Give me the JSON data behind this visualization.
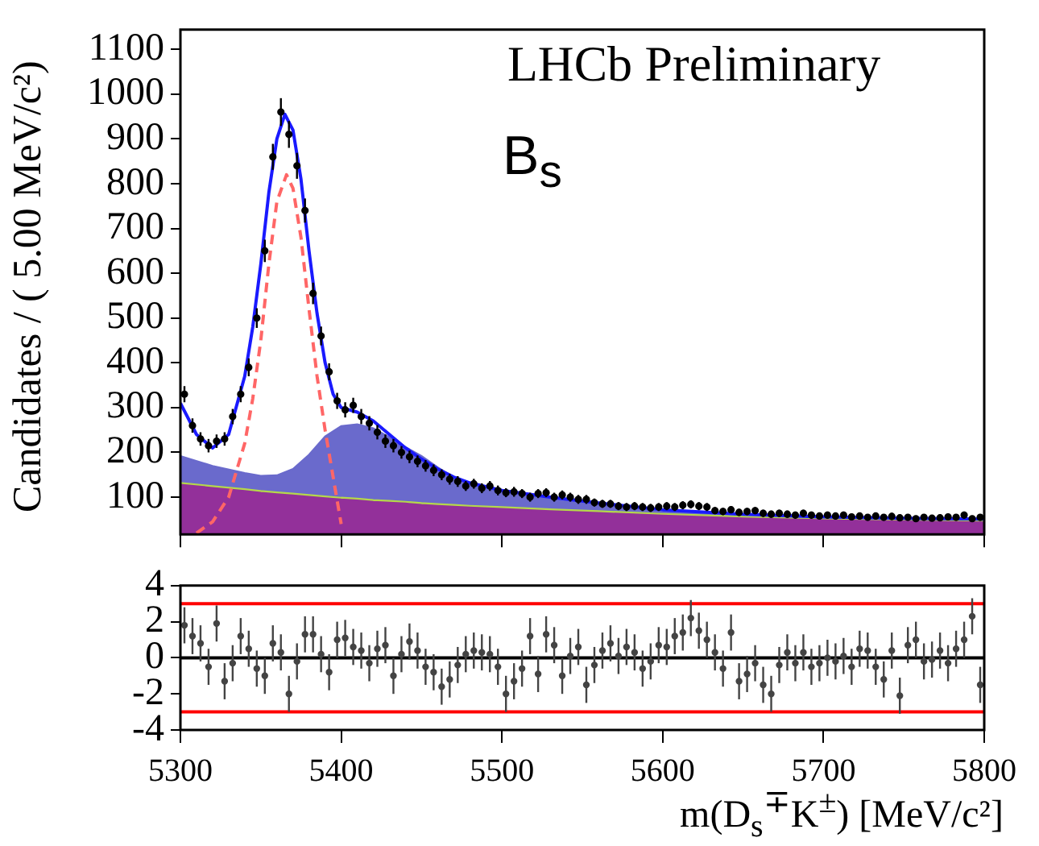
{
  "chart_data": [
    {
      "type": "scatter",
      "ylabel": "Candidates / ( 5.00 MeV/c²)",
      "annotations": [
        "LHCb Preliminary",
        "B$_{s}$"
      ],
      "xlim": [
        5300,
        5800
      ],
      "xticks": [
        5300,
        5400,
        5500,
        5600,
        5700,
        5800
      ],
      "ylim": [
        17,
        1144
      ],
      "yticks": [
        100,
        200,
        300,
        400,
        500,
        600,
        700,
        800,
        900,
        1000,
        1100
      ],
      "tick_labels": "y",
      "x": [
        5302.5,
        5307.5,
        5312.5,
        5317.5,
        5322.5,
        5327.5,
        5332.5,
        5337.5,
        5342.5,
        5347.5,
        5352.5,
        5357.5,
        5362.5,
        5367.5,
        5372.5,
        5377.5,
        5382.5,
        5387.5,
        5392.5,
        5397.5,
        5402.5,
        5407.5,
        5412.5,
        5417.5,
        5422.5,
        5427.5,
        5432.5,
        5437.5,
        5442.5,
        5447.5,
        5452.5,
        5457.5,
        5462.5,
        5467.5,
        5472.5,
        5477.5,
        5482.5,
        5487.5,
        5492.5,
        5497.5,
        5502.5,
        5507.5,
        5512.5,
        5517.5,
        5522.5,
        5527.5,
        5532.5,
        5537.5,
        5542.5,
        5547.5,
        5552.5,
        5557.5,
        5562.5,
        5567.5,
        5572.5,
        5577.5,
        5582.5,
        5587.5,
        5592.5,
        5597.5,
        5602.5,
        5607.5,
        5612.5,
        5617.5,
        5622.5,
        5627.5,
        5632.5,
        5637.5,
        5642.5,
        5647.5,
        5652.5,
        5657.5,
        5662.5,
        5667.5,
        5672.5,
        5677.5,
        5682.5,
        5687.5,
        5692.5,
        5697.5,
        5702.5,
        5707.5,
        5712.5,
        5717.5,
        5722.5,
        5727.5,
        5732.5,
        5737.5,
        5742.5,
        5747.5,
        5752.5,
        5757.5,
        5762.5,
        5767.5,
        5772.5,
        5777.5,
        5782.5,
        5787.5,
        5792.5,
        5797.5
      ],
      "series": [
        {
          "color": "#000000",
          "marker": "circle",
          "values": [
            330,
            260,
            230,
            215,
            225,
            230,
            280,
            330,
            390,
            500,
            650,
            860,
            960,
            910,
            840,
            740,
            555,
            460,
            380,
            315,
            295,
            305,
            280,
            265,
            245,
            225,
            215,
            200,
            190,
            180,
            170,
            160,
            150,
            140,
            135,
            125,
            130,
            120,
            125,
            115,
            110,
            112,
            108,
            100,
            108,
            110,
            100,
            105,
            100,
            95,
            95,
            88,
            85,
            85,
            80,
            78,
            80,
            78,
            76,
            78,
            80,
            78,
            82,
            84,
            80,
            78,
            70,
            68,
            72,
            66,
            68,
            70,
            64,
            62,
            64,
            62,
            60,
            64,
            60,
            58,
            60,
            58,
            60,
            56,
            58,
            55,
            58,
            55,
            57,
            54,
            55,
            52,
            55,
            53,
            54,
            56,
            55,
            60,
            52,
            55
          ],
          "errors": [
            18,
            16,
            15,
            15,
            15,
            15,
            17,
            18,
            20,
            22,
            25,
            29,
            31,
            30,
            29,
            27,
            24,
            21,
            19,
            18,
            17,
            17,
            17,
            16,
            16,
            15,
            15,
            14,
            14,
            13,
            13,
            13,
            12,
            12,
            12,
            11,
            11,
            11,
            11,
            11,
            10,
            11,
            10,
            10,
            10,
            10,
            10,
            10,
            10,
            10,
            10,
            9,
            9,
            9,
            9,
            9,
            9,
            9,
            9,
            9,
            9,
            9,
            9,
            9,
            9,
            9,
            8,
            8,
            8,
            8,
            8,
            8,
            8,
            8,
            8,
            8,
            8,
            8,
            8,
            8,
            8,
            8,
            8,
            7,
            8,
            7,
            8,
            7,
            8,
            7,
            7,
            7,
            7,
            7,
            7,
            7,
            7,
            8,
            7,
            7
          ]
        },
        {
          "type": "line",
          "color": "#1a1aff",
          "line_style": "solid",
          "x": [
            5300,
            5310,
            5320,
            5330,
            5340,
            5345,
            5350,
            5355,
            5360,
            5365,
            5370,
            5375,
            5380,
            5385,
            5390,
            5395,
            5400,
            5410,
            5420,
            5430,
            5440,
            5450,
            5460,
            5470,
            5480,
            5500,
            5530,
            5560,
            5600,
            5650,
            5700,
            5750,
            5800
          ],
          "values": [
            310,
            240,
            210,
            240,
            370,
            480,
            620,
            780,
            900,
            955,
            920,
            810,
            650,
            510,
            400,
            330,
            300,
            290,
            270,
            240,
            210,
            185,
            163,
            145,
            132,
            115,
            100,
            87,
            72,
            62,
            56,
            53,
            51
          ]
        },
        {
          "type": "line",
          "color": "#ff6666",
          "line_style": "dashed",
          "x": [
            5310,
            5320,
            5330,
            5340,
            5345,
            5350,
            5355,
            5360,
            5366,
            5370,
            5375,
            5380,
            5385,
            5390,
            5400
          ],
          "values": [
            20,
            45,
            100,
            220,
            320,
            450,
            620,
            760,
            820,
            790,
            680,
            520,
            370,
            250,
            40
          ]
        },
        {
          "type": "area",
          "color": "#93309a",
          "x": [
            5300,
            5320,
            5340,
            5350,
            5360,
            5370,
            5380,
            5390,
            5400,
            5410,
            5420,
            5430,
            5440,
            5450,
            5460,
            5470,
            5480,
            5500,
            5530,
            5560,
            5600,
            5650,
            5700,
            5750,
            5800
          ],
          "values": [
            128,
            121,
            114,
            110,
            107,
            104,
            101,
            98,
            95,
            93,
            90,
            88,
            86,
            83,
            81,
            79,
            77,
            74,
            69,
            65,
            59,
            53,
            49,
            46,
            44
          ]
        },
        {
          "type": "area",
          "color": "#b5d84a",
          "x": [
            5300,
            5320,
            5340,
            5350,
            5360,
            5370,
            5380,
            5390,
            5400,
            5410,
            5420,
            5430,
            5440,
            5450,
            5460,
            5470,
            5480,
            5500,
            5530,
            5560,
            5600,
            5650,
            5700,
            5750,
            5800
          ],
          "values": [
            132,
            125,
            118,
            114,
            111,
            108,
            105,
            102,
            99,
            97,
            94,
            92,
            90,
            87,
            85,
            83,
            81,
            78,
            73,
            69,
            63,
            57,
            53,
            50,
            48
          ]
        },
        {
          "type": "area",
          "color": "#6a6acc",
          "x": [
            5300,
            5320,
            5340,
            5350,
            5360,
            5370,
            5380,
            5390,
            5400,
            5410,
            5420,
            5430,
            5440,
            5450,
            5460,
            5470,
            5480,
            5500,
            5530,
            5560,
            5600,
            5650
          ],
          "values": [
            192,
            170,
            154,
            148,
            149,
            163,
            195,
            236,
            259,
            263,
            254,
            234,
            212,
            192,
            167,
            144,
            131,
            117,
            100,
            83,
            68,
            58
          ]
        }
      ]
    },
    {
      "type": "scatter",
      "xlabel": "m(D$_{s}$$^{∓}$K$^{±}$) [MeV/c²]",
      "xlim": [
        5300,
        5800
      ],
      "xticks": [
        5300,
        5400,
        5500,
        5600,
        5700,
        5800
      ],
      "ylim": [
        -4,
        4
      ],
      "yticks": [
        -4,
        -2,
        0,
        2,
        4
      ],
      "ref_lines": [
        {
          "axis": "y",
          "value": 3,
          "color": "#ff0000"
        },
        {
          "axis": "y",
          "value": -3,
          "color": "#ff0000"
        },
        {
          "axis": "y",
          "value": 0,
          "color": "#000000"
        }
      ],
      "x": [
        5302.5,
        5307.5,
        5312.5,
        5317.5,
        5322.5,
        5327.5,
        5332.5,
        5337.5,
        5342.5,
        5347.5,
        5352.5,
        5357.5,
        5362.5,
        5367.5,
        5372.5,
        5377.5,
        5382.5,
        5387.5,
        5392.5,
        5397.5,
        5402.5,
        5407.5,
        5412.5,
        5417.5,
        5422.5,
        5427.5,
        5432.5,
        5437.5,
        5442.5,
        5447.5,
        5452.5,
        5457.5,
        5462.5,
        5467.5,
        5472.5,
        5477.5,
        5482.5,
        5487.5,
        5492.5,
        5497.5,
        5502.5,
        5507.5,
        5512.5,
        5517.5,
        5522.5,
        5527.5,
        5532.5,
        5537.5,
        5542.5,
        5547.5,
        5552.5,
        5557.5,
        5562.5,
        5567.5,
        5572.5,
        5577.5,
        5582.5,
        5587.5,
        5592.5,
        5597.5,
        5602.5,
        5607.5,
        5612.5,
        5617.5,
        5622.5,
        5627.5,
        5632.5,
        5637.5,
        5642.5,
        5647.5,
        5652.5,
        5657.5,
        5662.5,
        5667.5,
        5672.5,
        5677.5,
        5682.5,
        5687.5,
        5692.5,
        5697.5,
        5702.5,
        5707.5,
        5712.5,
        5717.5,
        5722.5,
        5727.5,
        5732.5,
        5737.5,
        5742.5,
        5747.5,
        5752.5,
        5757.5,
        5762.5,
        5767.5,
        5772.5,
        5777.5,
        5782.5,
        5787.5,
        5792.5,
        5797.5
      ],
      "series": [
        {
          "color": "#444444",
          "marker": "circle",
          "values": [
            1.8,
            1.2,
            0.8,
            -0.5,
            1.9,
            -1.3,
            -0.3,
            1.2,
            0.5,
            -0.6,
            -1.0,
            0.8,
            0.3,
            -2.0,
            -0.2,
            1.3,
            1.3,
            0.2,
            -0.8,
            1.0,
            1.1,
            0.6,
            0.4,
            -0.3,
            0.5,
            0.7,
            -1.0,
            0.2,
            0.9,
            0.4,
            -0.5,
            -0.8,
            -1.6,
            -1.2,
            -0.4,
            0.2,
            0.4,
            0.3,
            0.2,
            -0.5,
            -2.0,
            -1.3,
            -0.6,
            1.2,
            -0.9,
            1.3,
            0.7,
            -1.0,
            0.1,
            0.6,
            -1.5,
            -0.4,
            0.4,
            0.8,
            0.1,
            0.6,
            0.3,
            -0.6,
            -0.2,
            0.7,
            0.6,
            1.2,
            1.4,
            2.2,
            1.5,
            1.0,
            0.3,
            -0.6,
            1.4,
            -1.3,
            -0.9,
            -0.3,
            -1.5,
            -2.0,
            -0.4,
            0.3,
            -0.3,
            0.3,
            -0.5,
            -0.3,
            0.0,
            -0.2,
            0.1,
            -0.5,
            0.5,
            0.4,
            -0.5,
            -1.2,
            0.4,
            -2.1,
            0.7,
            1.0,
            -0.2,
            -0.1,
            0.4,
            -0.3,
            0.5,
            1.0,
            2.3,
            -1.5
          ],
          "errors": [
            1,
            1,
            1,
            1,
            1,
            1,
            1,
            1,
            1,
            1,
            1,
            1,
            1,
            1,
            1,
            1,
            1,
            1,
            1,
            1,
            1,
            1,
            1,
            1,
            1,
            1,
            1,
            1,
            1,
            1,
            1,
            1,
            1,
            1,
            1,
            1,
            1,
            1,
            1,
            1,
            1,
            1,
            1,
            1,
            1,
            1,
            1,
            1,
            1,
            1,
            1,
            1,
            1,
            1,
            1,
            1,
            1,
            1,
            1,
            1,
            1,
            1,
            1,
            1,
            1,
            1,
            1,
            1,
            1,
            1,
            1,
            1,
            1,
            1,
            1,
            1,
            1,
            1,
            1,
            1,
            1,
            1,
            1,
            1,
            1,
            1,
            1,
            1,
            1,
            1,
            1,
            1,
            1,
            1,
            1,
            1,
            1,
            1,
            1,
            1
          ]
        }
      ]
    }
  ]
}
